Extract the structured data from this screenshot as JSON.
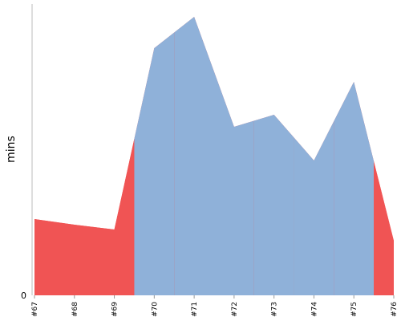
{
  "chart_data": {
    "type": "area",
    "y_label": "mins",
    "categories": [
      "#67",
      "#68",
      "#69",
      "#70",
      "#71",
      "#72",
      "#73",
      "#74",
      "#75",
      "#76"
    ],
    "series": [
      {
        "values": [
          9.5,
          8.8,
          8.2,
          30.8,
          34.7,
          21.0,
          22.5,
          16.8,
          26.6,
          6.8
        ],
        "point_colors": [
          "#f05454",
          "#f05454",
          "#f05454",
          "#8fb1d9",
          "#8fb1d9",
          "#8fb1d9",
          "#8fb1d9",
          "#8fb1d9",
          "#8fb1d9",
          "#f05454"
        ]
      }
    ],
    "ylim": [
      0,
      36.3
    ],
    "yticks": [
      0
    ]
  }
}
